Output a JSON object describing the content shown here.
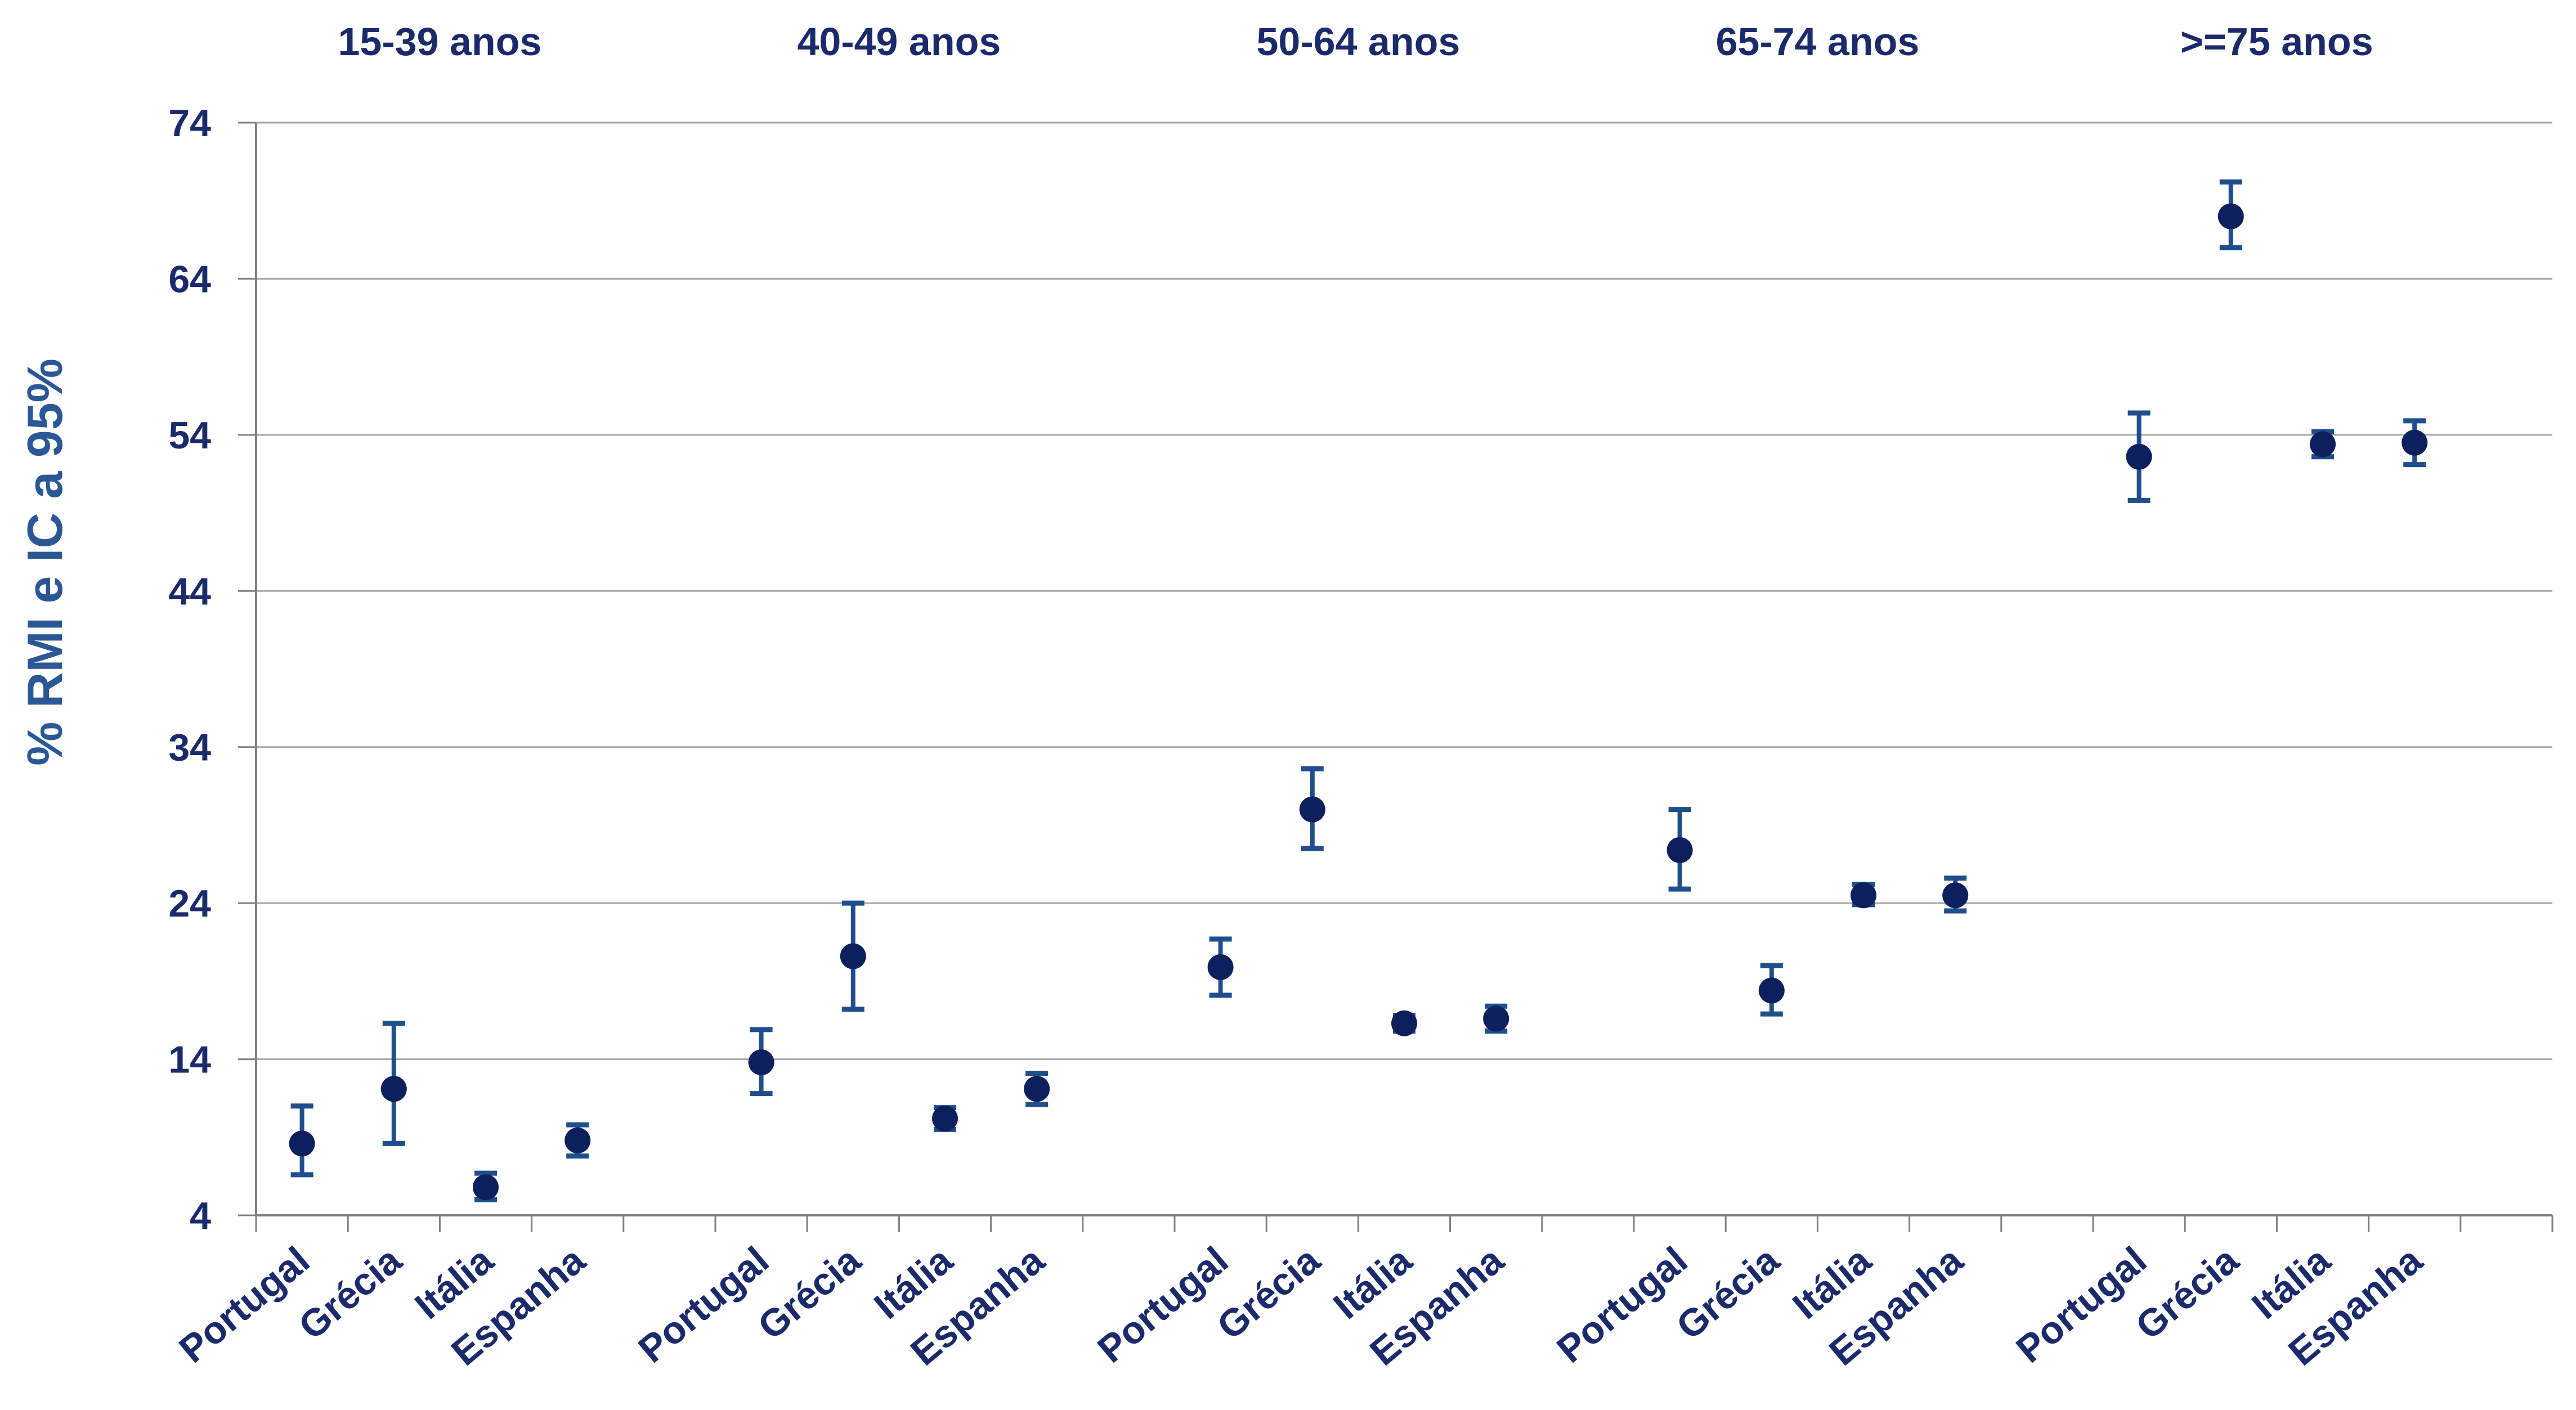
{
  "chart_data": {
    "type": "scatter",
    "title": "",
    "xlabel": "",
    "ylabel": "% RMI e IC a 95%",
    "ylim": [
      4,
      74
    ],
    "yticks": [
      4,
      14,
      24,
      34,
      44,
      54,
      64,
      74
    ],
    "grid": true,
    "legend": "none",
    "colors": {
      "marker": "#0d1f5c",
      "errorbar": "#1f4e8c",
      "text": "#1b2a6b",
      "ylabel": "#2b5796",
      "grid": "#a6a6a6",
      "axis": "#808080"
    },
    "groups": [
      {
        "label": "15-39 anos",
        "points": [
          {
            "category": "Portugal",
            "value": 8.6,
            "lower": 6.6,
            "upper": 11.0
          },
          {
            "category": "Grécia",
            "value": 12.1,
            "lower": 8.6,
            "upper": 16.3
          },
          {
            "category": "Itália",
            "value": 5.8,
            "lower": 5.0,
            "upper": 6.7
          },
          {
            "category": "Espanha",
            "value": 8.8,
            "lower": 7.8,
            "upper": 9.8
          }
        ]
      },
      {
        "label": "40-49 anos",
        "points": [
          {
            "category": "Portugal",
            "value": 13.8,
            "lower": 11.8,
            "upper": 15.9
          },
          {
            "category": "Grécia",
            "value": 20.6,
            "lower": 17.2,
            "upper": 24.0
          },
          {
            "category": "Itália",
            "value": 10.2,
            "lower": 9.5,
            "upper": 10.9
          },
          {
            "category": "Espanha",
            "value": 12.1,
            "lower": 11.1,
            "upper": 13.1
          }
        ]
      },
      {
        "label": "50-64 anos",
        "points": [
          {
            "category": "Portugal",
            "value": 19.9,
            "lower": 18.1,
            "upper": 21.7
          },
          {
            "category": "Grécia",
            "value": 30.0,
            "lower": 27.5,
            "upper": 32.6
          },
          {
            "category": "Itália",
            "value": 16.3,
            "lower": 15.8,
            "upper": 16.8
          },
          {
            "category": "Espanha",
            "value": 16.6,
            "lower": 15.8,
            "upper": 17.4
          }
        ]
      },
      {
        "label": "65-74 anos",
        "points": [
          {
            "category": "Portugal",
            "value": 27.4,
            "lower": 24.9,
            "upper": 30.0
          },
          {
            "category": "Grécia",
            "value": 18.4,
            "lower": 16.9,
            "upper": 20.0
          },
          {
            "category": "Itália",
            "value": 24.5,
            "lower": 23.9,
            "upper": 25.2
          },
          {
            "category": "Espanha",
            "value": 24.5,
            "lower": 23.5,
            "upper": 25.6
          }
        ]
      },
      {
        "label": ">=75 anos",
        "points": [
          {
            "category": "Portugal",
            "value": 52.6,
            "lower": 49.8,
            "upper": 55.4
          },
          {
            "category": "Grécia",
            "value": 68.0,
            "lower": 66.0,
            "upper": 70.2
          },
          {
            "category": "Itália",
            "value": 53.4,
            "lower": 52.6,
            "upper": 54.2
          },
          {
            "category": "Espanha",
            "value": 53.5,
            "lower": 52.1,
            "upper": 54.9
          }
        ]
      }
    ]
  }
}
